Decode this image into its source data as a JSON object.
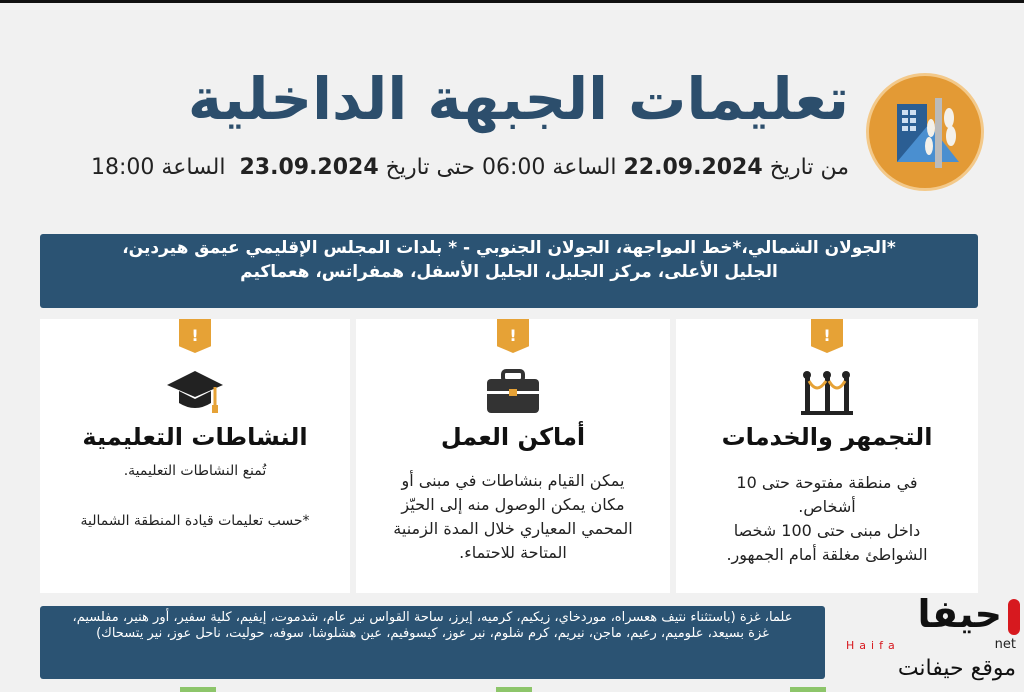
{
  "header": {
    "title": "تعليمات الجبهة الداخلية",
    "date_prefix": "من تاريخ",
    "date_from": "22.09.2024",
    "time_label_1": "الساعة",
    "time_from": "06:00",
    "until": "حتى تاريخ",
    "date_to": "23.09.2024",
    "time_label_2": "الساعة",
    "time_to": "18:00",
    "logo_icon": "home-front-command-logo"
  },
  "areas": {
    "line1": "*الجولان الشمالي،*خط المواجهة، الجولان الجنوبي - * بلدات المجلس الإقليمي عيمق هيردين،",
    "line2": "الجليل الأعلى، مركز الجليل، الجليل الأسفل، همفراتس، هعماكيم"
  },
  "cards": [
    {
      "badge": "!",
      "icon": "stanchion-rope-icon",
      "title": "التجمهر والخدمات",
      "lines": [
        "في منطقة مفتوحة حتى 10",
        "أشخاص.",
        "داخل مبنى حتى 100 شخصا",
        "الشواطئ مغلقة أمام الجمهور."
      ]
    },
    {
      "badge": "!",
      "icon": "briefcase-icon",
      "title": "أماكن العمل",
      "lines": [
        "يمكن القيام بنشاطات في مبنى أو",
        "مكان يمكن الوصول منه إلى الحيّز",
        "المحمي المعياري خلال المدة الزمنية",
        "المتاحة للاحتماء."
      ]
    },
    {
      "badge": "!",
      "icon": "graduation-cap-icon",
      "title": "النشاطات التعليمية",
      "lines": [
        "تُمنع النشاطات التعليمية.",
        "",
        "*حسب تعليمات قيادة المنطقة الشمالية"
      ]
    }
  ],
  "footer_areas": {
    "line1": "علما، غزة (باستثناء نتيف هعسراه، موردخاي، زيكيم، كرميه، إيرز، ساحة القواس نير عام، شدموت، إيفيم، كلية سفير، أور هنير، مفلسيم،",
    "line2": "غزة بسيعد، علوميم، رعيم، ماجن، نيريم، كرم شلوم، نير عوز، كيسوفيم، عين هشلوشا، سوفه، حوليت، ناحل عوز، نير يتسحاك)"
  },
  "watermark": {
    "brand": "حيفا",
    "latin": "Haifa",
    "tld": "net",
    "site": "موقع حيفانت"
  },
  "colors": {
    "primary": "#2b5373",
    "accent": "#e6a236",
    "brand_red": "#d7191f"
  }
}
